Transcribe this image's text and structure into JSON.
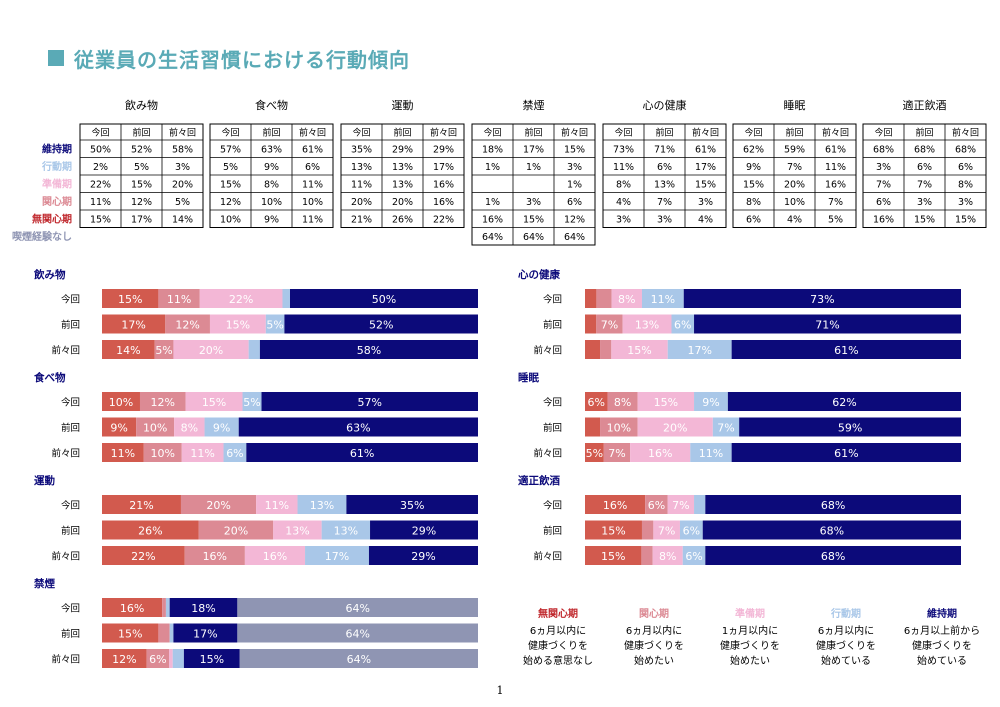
{
  "title": "従業員の生活習慣における行動傾向",
  "page_number": "1",
  "colors": {
    "無関心期": "#d25a4e",
    "関心期": "#dc8a94",
    "準備期": "#f3b7d6",
    "行動期": "#a9c7e8",
    "維持期": "#0c0a7a",
    "喫煙経験なし": "#8f95b3",
    "title": "#5aaab6"
  },
  "column_headers": [
    "今回",
    "前回",
    "前々回"
  ],
  "row_labels": [
    "維持期",
    "行動期",
    "準備期",
    "関心期",
    "無関心期",
    "喫煙経験なし"
  ],
  "stage_order_in_bars": [
    "無関心期",
    "関心期",
    "準備期",
    "行動期",
    "維持期"
  ],
  "tables": [
    {
      "habit": "飲み物",
      "rows": {
        "維持期": [
          "50%",
          "52%",
          "58%"
        ],
        "行動期": [
          "2%",
          "5%",
          "3%"
        ],
        "準備期": [
          "22%",
          "15%",
          "20%"
        ],
        "関心期": [
          "11%",
          "12%",
          "5%"
        ],
        "無関心期": [
          "15%",
          "17%",
          "14%"
        ]
      }
    },
    {
      "habit": "食べ物",
      "rows": {
        "維持期": [
          "57%",
          "63%",
          "61%"
        ],
        "行動期": [
          "5%",
          "9%",
          "6%"
        ],
        "準備期": [
          "15%",
          "8%",
          "11%"
        ],
        "関心期": [
          "12%",
          "10%",
          "10%"
        ],
        "無関心期": [
          "10%",
          "9%",
          "11%"
        ]
      }
    },
    {
      "habit": "運動",
      "rows": {
        "維持期": [
          "35%",
          "29%",
          "29%"
        ],
        "行動期": [
          "13%",
          "13%",
          "17%"
        ],
        "準備期": [
          "11%",
          "13%",
          "16%"
        ],
        "関心期": [
          "20%",
          "20%",
          "16%"
        ],
        "無関心期": [
          "21%",
          "26%",
          "22%"
        ]
      }
    },
    {
      "habit": "禁煙",
      "rows": {
        "維持期": [
          "18%",
          "17%",
          "15%"
        ],
        "行動期": [
          "1%",
          "1%",
          "3%"
        ],
        "準備期": [
          "",
          "",
          "1%"
        ],
        "関心期": [
          "1%",
          "3%",
          "6%"
        ],
        "無関心期": [
          "16%",
          "15%",
          "12%"
        ],
        "喫煙経験なし": [
          "64%",
          "64%",
          "64%"
        ]
      }
    },
    {
      "habit": "心の健康",
      "rows": {
        "維持期": [
          "73%",
          "71%",
          "61%"
        ],
        "行動期": [
          "11%",
          "6%",
          "17%"
        ],
        "準備期": [
          "8%",
          "13%",
          "15%"
        ],
        "関心期": [
          "4%",
          "7%",
          "3%"
        ],
        "無関心期": [
          "3%",
          "3%",
          "4%"
        ]
      }
    },
    {
      "habit": "睡眠",
      "rows": {
        "維持期": [
          "62%",
          "59%",
          "61%"
        ],
        "行動期": [
          "9%",
          "7%",
          "11%"
        ],
        "準備期": [
          "15%",
          "20%",
          "16%"
        ],
        "関心期": [
          "8%",
          "10%",
          "7%"
        ],
        "無関心期": [
          "6%",
          "4%",
          "5%"
        ]
      }
    },
    {
      "habit": "適正飲酒",
      "rows": {
        "維持期": [
          "68%",
          "68%",
          "68%"
        ],
        "行動期": [
          "3%",
          "6%",
          "6%"
        ],
        "準備期": [
          "7%",
          "7%",
          "8%"
        ],
        "関心期": [
          "6%",
          "3%",
          "3%"
        ],
        "無関心期": [
          "16%",
          "15%",
          "15%"
        ]
      }
    }
  ],
  "chart_data": [
    {
      "type": "bar",
      "title": "飲み物",
      "categories": [
        "今回",
        "前回",
        "前々回"
      ],
      "xlim": [
        0,
        100
      ],
      "series": [
        {
          "name": "無関心期",
          "values": [
            15,
            17,
            14
          ]
        },
        {
          "name": "関心期",
          "values": [
            11,
            12,
            5
          ]
        },
        {
          "name": "準備期",
          "values": [
            22,
            15,
            20
          ]
        },
        {
          "name": "行動期",
          "values": [
            2,
            5,
            3
          ]
        },
        {
          "name": "維持期",
          "values": [
            50,
            52,
            58
          ]
        }
      ]
    },
    {
      "type": "bar",
      "title": "食べ物",
      "categories": [
        "今回",
        "前回",
        "前々回"
      ],
      "xlim": [
        0,
        100
      ],
      "series": [
        {
          "name": "無関心期",
          "values": [
            10,
            9,
            11
          ]
        },
        {
          "name": "関心期",
          "values": [
            12,
            10,
            10
          ]
        },
        {
          "name": "準備期",
          "values": [
            15,
            8,
            11
          ]
        },
        {
          "name": "行動期",
          "values": [
            5,
            9,
            6
          ]
        },
        {
          "name": "維持期",
          "values": [
            57,
            63,
            61
          ]
        }
      ]
    },
    {
      "type": "bar",
      "title": "運動",
      "categories": [
        "今回",
        "前回",
        "前々回"
      ],
      "xlim": [
        0,
        100
      ],
      "series": [
        {
          "name": "無関心期",
          "values": [
            21,
            26,
            22
          ]
        },
        {
          "name": "関心期",
          "values": [
            20,
            20,
            16
          ]
        },
        {
          "name": "準備期",
          "values": [
            11,
            13,
            16
          ]
        },
        {
          "name": "行動期",
          "values": [
            13,
            13,
            17
          ]
        },
        {
          "name": "維持期",
          "values": [
            35,
            29,
            29
          ]
        }
      ]
    },
    {
      "type": "bar",
      "title": "禁煙",
      "categories": [
        "今回",
        "前回",
        "前々回"
      ],
      "xlim": [
        0,
        100
      ],
      "series": [
        {
          "name": "無関心期",
          "values": [
            16,
            15,
            12
          ]
        },
        {
          "name": "関心期",
          "values": [
            1,
            3,
            6
          ]
        },
        {
          "name": "準備期",
          "values": [
            0,
            0,
            1
          ]
        },
        {
          "name": "行動期",
          "values": [
            1,
            1,
            3
          ]
        },
        {
          "name": "維持期",
          "values": [
            18,
            17,
            15
          ]
        },
        {
          "name": "喫煙経験なし",
          "values": [
            64,
            64,
            64
          ]
        }
      ]
    },
    {
      "type": "bar",
      "title": "心の健康",
      "categories": [
        "今回",
        "前回",
        "前々回"
      ],
      "xlim": [
        0,
        100
      ],
      "series": [
        {
          "name": "無関心期",
          "values": [
            3,
            3,
            4
          ]
        },
        {
          "name": "関心期",
          "values": [
            4,
            7,
            3
          ]
        },
        {
          "name": "準備期",
          "values": [
            8,
            13,
            15
          ]
        },
        {
          "name": "行動期",
          "values": [
            11,
            6,
            17
          ]
        },
        {
          "name": "維持期",
          "values": [
            73,
            71,
            61
          ]
        }
      ]
    },
    {
      "type": "bar",
      "title": "睡眠",
      "categories": [
        "今回",
        "前回",
        "前々回"
      ],
      "xlim": [
        0,
        100
      ],
      "series": [
        {
          "name": "無関心期",
          "values": [
            6,
            4,
            5
          ]
        },
        {
          "name": "関心期",
          "values": [
            8,
            10,
            7
          ]
        },
        {
          "name": "準備期",
          "values": [
            15,
            20,
            16
          ]
        },
        {
          "name": "行動期",
          "values": [
            9,
            7,
            11
          ]
        },
        {
          "name": "維持期",
          "values": [
            62,
            59,
            61
          ]
        }
      ]
    },
    {
      "type": "bar",
      "title": "適正飲酒",
      "categories": [
        "今回",
        "前回",
        "前々回"
      ],
      "xlim": [
        0,
        100
      ],
      "series": [
        {
          "name": "無関心期",
          "values": [
            16,
            15,
            15
          ]
        },
        {
          "name": "関心期",
          "values": [
            6,
            3,
            3
          ]
        },
        {
          "name": "準備期",
          "values": [
            7,
            7,
            8
          ]
        },
        {
          "name": "行動期",
          "values": [
            3,
            6,
            6
          ]
        },
        {
          "name": "維持期",
          "values": [
            68,
            68,
            68
          ]
        }
      ]
    }
  ],
  "legend": [
    {
      "name": "無関心期",
      "lines": [
        "6ヵ月以内に",
        "健康づくりを",
        "始める意思なし"
      ]
    },
    {
      "name": "関心期",
      "lines": [
        "6ヵ月以内に",
        "健康づくりを",
        "始めたい"
      ]
    },
    {
      "name": "準備期",
      "lines": [
        "1ヵ月以内に",
        "健康づくりを",
        "始めたい"
      ]
    },
    {
      "name": "行動期",
      "lines": [
        "6ヵ月以内に",
        "健康づくりを",
        "始めている"
      ]
    },
    {
      "name": "維持期",
      "lines": [
        "6ヵ月以上前から",
        "健康づくりを",
        "始めている"
      ]
    }
  ]
}
